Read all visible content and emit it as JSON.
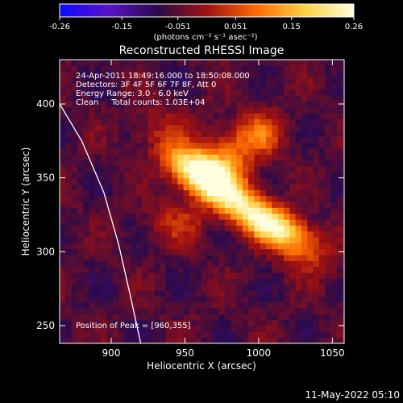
{
  "colorbar": {
    "tick_labels": [
      "-0.26",
      "-0.15",
      "-0.051",
      "0.051",
      "0.15",
      "0.26"
    ],
    "tick_values": [
      -0.26,
      -0.15,
      -0.051,
      0.051,
      0.15,
      0.26
    ],
    "range": [
      -0.26,
      0.26
    ],
    "unit_label": "(photons cm⁻² s⁻¹ asec⁻²)",
    "colors": [
      "#0a0aff",
      "#5a12c8",
      "#2a0a4a",
      "#a01010",
      "#ff6a00",
      "#ffd040",
      "#ffffe0"
    ]
  },
  "chart_data": {
    "type": "heatmap",
    "title": "Reconstructed RHESSI Image",
    "xlabel": "Heliocentric X (arcsec)",
    "ylabel": "Heliocentric Y (arcsec)",
    "xlim": [
      865,
      1058
    ],
    "ylim": [
      238,
      430
    ],
    "x_ticks": [
      900,
      950,
      1000,
      1050
    ],
    "y_ticks": [
      250,
      300,
      350,
      400
    ],
    "x_tick_labels": [
      "900",
      "950",
      "1000",
      "1050"
    ],
    "y_tick_labels": [
      "250",
      "300",
      "350",
      "400"
    ],
    "peak": [
      960,
      355
    ],
    "annotations": [
      "24-Apr-2011 18:49:16.000 to 18:50:08.000",
      "Detectors: 3F 4F 5F 6F 7F 8F, Att 0",
      "Energy Range: 3.0 - 6.0 keV",
      "Clean     Total counts: 1.03E+04"
    ],
    "peak_label": "Position of Peak = [960,355]",
    "limb": [
      [
        865,
        400
      ],
      [
        880,
        375
      ],
      [
        895,
        340
      ],
      [
        905,
        305
      ],
      [
        913,
        270
      ],
      [
        920,
        238
      ]
    ],
    "sources": [
      {
        "x": 962,
        "y": 353,
        "amp": 0.26,
        "sx": 16,
        "sy": 10,
        "angle": -30
      },
      {
        "x": 985,
        "y": 335,
        "amp": 0.22,
        "sx": 35,
        "sy": 9,
        "angle": -35
      },
      {
        "x": 1010,
        "y": 318,
        "amp": 0.17,
        "sx": 18,
        "sy": 8,
        "angle": -20
      },
      {
        "x": 1000,
        "y": 380,
        "amp": 0.14,
        "sx": 12,
        "sy": 10,
        "angle": 0
      },
      {
        "x": 980,
        "y": 365,
        "amp": 0.12,
        "sx": 10,
        "sy": 14,
        "angle": 40
      },
      {
        "x": 945,
        "y": 320,
        "amp": 0.08,
        "sx": 14,
        "sy": 10,
        "angle": 0
      },
      {
        "x": 1030,
        "y": 300,
        "amp": 0.07,
        "sx": 12,
        "sy": 10,
        "angle": 0
      },
      {
        "x": 935,
        "y": 385,
        "amp": 0.05,
        "sx": 12,
        "sy": 12,
        "angle": 0
      }
    ]
  },
  "footer": {
    "timestamp": "11-May-2022 05:10"
  }
}
